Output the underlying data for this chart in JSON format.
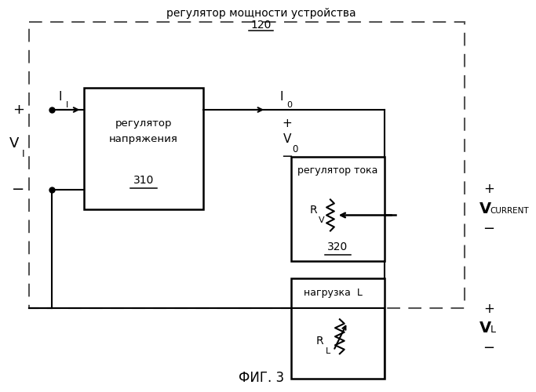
{
  "bg_color": "#ffffff",
  "title": "регулятор мощности устройства",
  "title_ref": "120",
  "fig_label": "ФИГ. 3",
  "vreg_l1": "регулятор",
  "vreg_l2": "напряжения",
  "vreg_ref": "310",
  "ireg_l": "регулятор тока",
  "ireg_ref": "320",
  "load_l": "нагрузка  L",
  "tc": "#000000",
  "dash_color": "#555555"
}
